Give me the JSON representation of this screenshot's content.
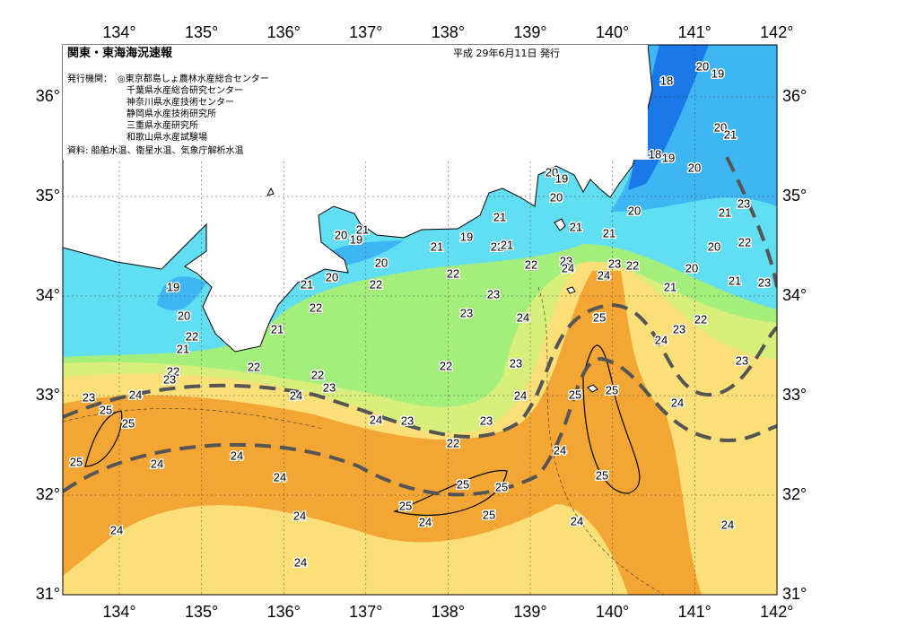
{
  "header": {
    "title": "関東・東海海況速報",
    "date": "平成 29年6月11日 発行"
  },
  "issuers": {
    "label": "発行機関：",
    "items": [
      "◎東京都島しょ農林水産総合センター",
      "千葉県水産総合研究センター",
      "神奈川県水産技術センター",
      "静岡県水産技術研究所",
      "三重県水産研究所",
      "和歌山県水産試験場"
    ]
  },
  "source": "資料: 船舶水温、衛星水温、気象庁解析水温",
  "axes": {
    "lon_ticks": [
      {
        "value": 134,
        "label": "134°"
      },
      {
        "value": 135,
        "label": "135°"
      },
      {
        "value": 136,
        "label": "136°"
      },
      {
        "value": 137,
        "label": "137°"
      },
      {
        "value": 138,
        "label": "138°"
      },
      {
        "value": 139,
        "label": "139°"
      },
      {
        "value": 140,
        "label": "140°"
      },
      {
        "value": 141,
        "label": "141°"
      },
      {
        "value": 142,
        "label": "142°"
      }
    ],
    "lat_ticks": [
      {
        "value": 31,
        "label": "31°"
      },
      {
        "value": 32,
        "label": "32°"
      },
      {
        "value": 33,
        "label": "33°"
      },
      {
        "value": 34,
        "label": "34°"
      },
      {
        "value": 35,
        "label": "35°"
      },
      {
        "value": 36,
        "label": "36°"
      }
    ]
  },
  "isotherm_labels": [
    20,
    19,
    18,
    20,
    21,
    18,
    19,
    20,
    20,
    21,
    23,
    22,
    20,
    20,
    21,
    23,
    21,
    22,
    23,
    24,
    23,
    24,
    20,
    19,
    20,
    21,
    21,
    21,
    19,
    22,
    21,
    22,
    23,
    24,
    23,
    22,
    24,
    23,
    23,
    24,
    25,
    23,
    24,
    25,
    25,
    23,
    24,
    25,
    24,
    24,
    20,
    21,
    19,
    21,
    20,
    20,
    22,
    22,
    21,
    22,
    21,
    22,
    22,
    22,
    23,
    24,
    24,
    23,
    22,
    19,
    20,
    22,
    21,
    22,
    23,
    23,
    24,
    25,
    25,
    25,
    24,
    24,
    24,
    25,
    25,
    25,
    24,
    25,
    24,
    24,
    24
  ]
}
